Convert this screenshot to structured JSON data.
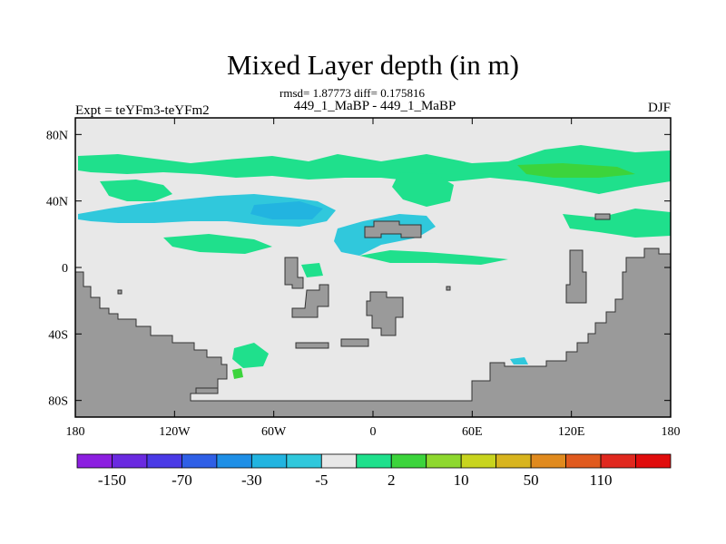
{
  "title": "Mixed Layer depth (in m)",
  "stats_line": "rmsd= 1.87773 diff= 0.175816",
  "subtitle": "449_1_MaBP - 449_1_MaBP",
  "left_label": "Expt = teYFm3-teYFm2",
  "right_label": "DJF",
  "axes": {
    "x_ticks": [
      {
        "value": -180,
        "label": "180"
      },
      {
        "value": -120,
        "label": "120W"
      },
      {
        "value": -60,
        "label": "60W"
      },
      {
        "value": 0,
        "label": "0"
      },
      {
        "value": 60,
        "label": "60E"
      },
      {
        "value": 120,
        "label": "120E"
      },
      {
        "value": 180,
        "label": "180"
      }
    ],
    "y_ticks": [
      {
        "value": 80,
        "label": "80N"
      },
      {
        "value": 40,
        "label": "40N"
      },
      {
        "value": 0,
        "label": "0"
      },
      {
        "value": -40,
        "label": "40S"
      },
      {
        "value": -80,
        "label": "80S"
      }
    ],
    "lon_range": [
      -180,
      180
    ],
    "lat_range": [
      -90,
      90
    ]
  },
  "colorbar": {
    "colors": [
      "#8c1fe0",
      "#6a2ae0",
      "#4a3ae6",
      "#2f5fe6",
      "#1f8fe6",
      "#22b4e0",
      "#30c8dc",
      "#e8e8e8",
      "#1fe08c",
      "#3cd43c",
      "#8ed82e",
      "#c8d41e",
      "#d8b41e",
      "#e08a1e",
      "#e05a1e",
      "#e0281e",
      "#e00c0c"
    ],
    "labels": [
      "-150",
      "-70",
      "-30",
      "-5",
      "2",
      "10",
      "50",
      "110"
    ]
  },
  "colors": {
    "ocean": "#e8e8e8",
    "land": "#9a9a9a",
    "deepen": "#1fe08c",
    "deepen_strong": "#3cd43c",
    "shoal": "#30c8dc",
    "shoal_strong": "#22b4e0"
  }
}
